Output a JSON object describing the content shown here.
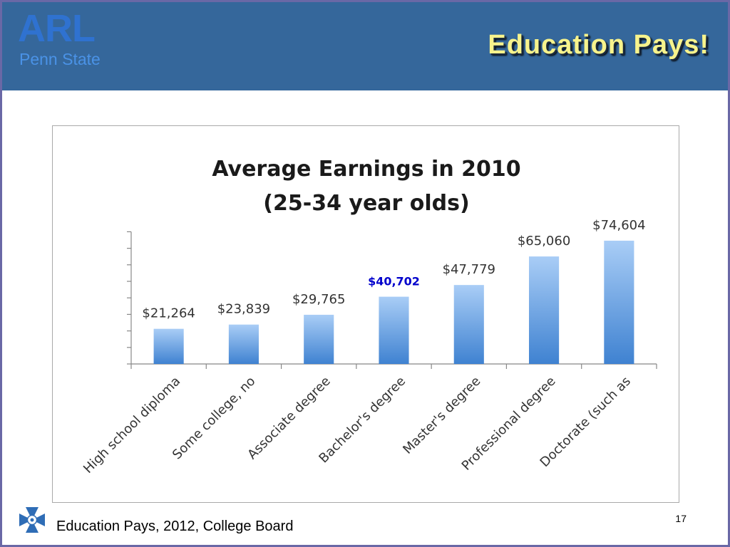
{
  "header": {
    "logo_text": "ARL",
    "logo_subtext": "Penn State",
    "slide_title": "Education Pays!"
  },
  "footer": {
    "source": "Education Pays, 2012, College Board",
    "page_number": "17",
    "logo_icon": "maltese-cross-icon"
  },
  "colors": {
    "header_background": "#35679b",
    "title_color": "#f7f38c",
    "bar_top": "#a9cdf6",
    "bar_bottom": "#3f82d1",
    "highlight_label": "#0000cc"
  },
  "chart_data": {
    "type": "bar",
    "title": "Average Earnings in 2010",
    "subtitle": "(25-34 year olds)",
    "categories": [
      "High school diploma",
      "Some college, no",
      "Associate degree",
      "Bachelor's degree",
      "Master's degree",
      "Professional degree",
      "Doctorate (such as"
    ],
    "values": [
      21264,
      23839,
      29765,
      40702,
      47779,
      65060,
      74604
    ],
    "data_labels": [
      "$21,264",
      "$23,839",
      "$29,765",
      "$40,702",
      "$47,779",
      "$65,060",
      "$74,604"
    ],
    "highlighted_index": 3,
    "ylim": [
      0,
      80000
    ],
    "xlabel": "",
    "ylabel": "",
    "grid": false,
    "legend": "none"
  }
}
